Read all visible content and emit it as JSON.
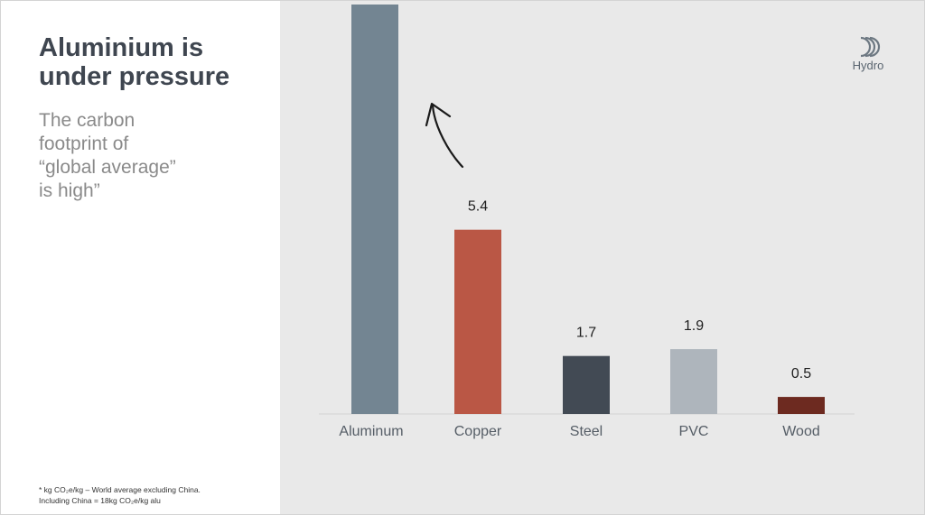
{
  "slide": {
    "title_line1": "Aluminium is",
    "title_line2": "under pressure",
    "subtitle_line1": "The carbon",
    "subtitle_line2": "footprint of",
    "subtitle_line3": "“global average”",
    "subtitle_line4": "is high”",
    "footnote_line1": "* kg CO₂e/kg – World average excluding China.",
    "footnote_line2": "Including China = 18kg CO₂e/kg alu",
    "logo_text": "Hydro",
    "logo_icon": "hydro-logo-icon"
  },
  "chart_data": {
    "type": "bar",
    "title": "",
    "xlabel": "",
    "ylabel": "",
    "categories": [
      "Aluminum",
      "Copper",
      "Steel",
      "PVC",
      "Wood"
    ],
    "values": [
      12.0,
      5.4,
      1.7,
      1.9,
      0.5
    ],
    "value_labels": [
      "",
      "5.4",
      "1.7",
      "1.9",
      "0.5"
    ],
    "colors": [
      "#738592",
      "#ba5745",
      "#424a54",
      "#aeb5bc",
      "#6d2a20"
    ],
    "ylim": [
      0,
      12
    ],
    "bar_clipped_at_top": [
      true,
      false,
      false,
      false,
      false
    ],
    "grid": false,
    "annotation": "hand-drawn arrow pointing up at the Aluminum bar"
  }
}
